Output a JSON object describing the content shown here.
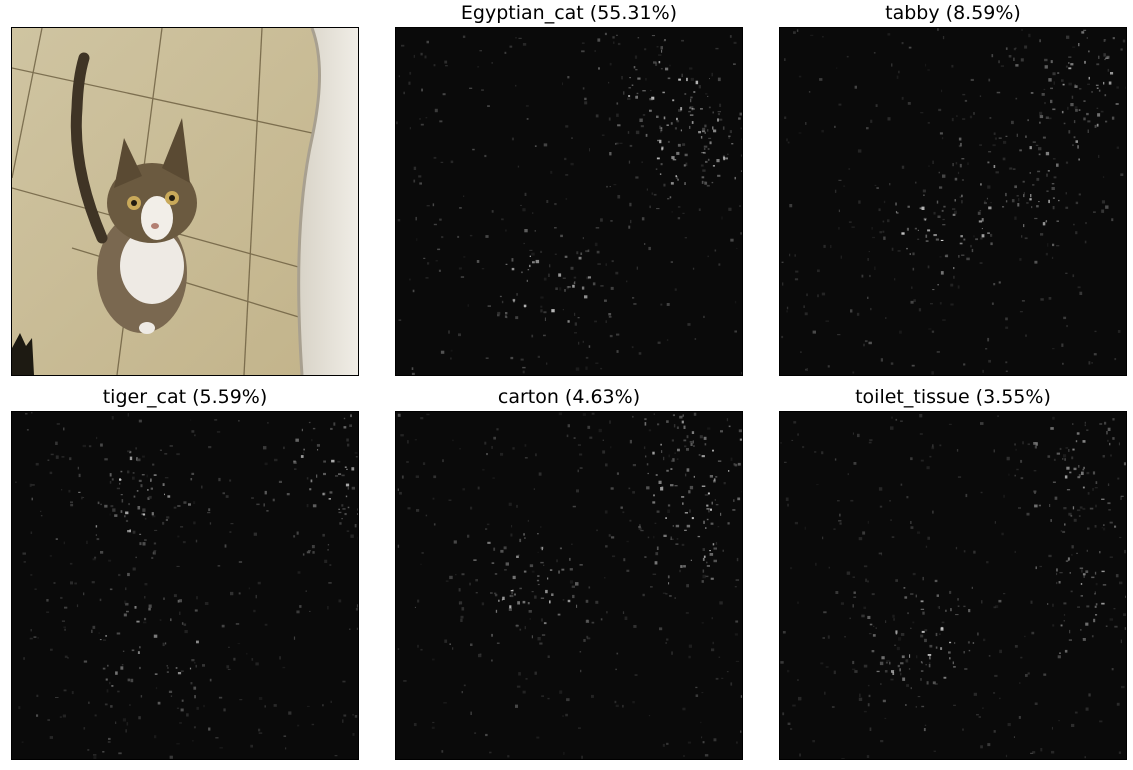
{
  "figure": {
    "panels": [
      {
        "title": "",
        "kind": "photo",
        "subject": "cat-photo"
      },
      {
        "title": "Egyptian_cat (55.31%)",
        "kind": "saliency",
        "subject": "saliency-map"
      },
      {
        "title": "tabby (8.59%)",
        "kind": "saliency",
        "subject": "saliency-map"
      },
      {
        "title": "tiger_cat (5.59%)",
        "kind": "saliency",
        "subject": "saliency-map"
      },
      {
        "title": "carton (4.63%)",
        "kind": "saliency",
        "subject": "saliency-map"
      },
      {
        "title": "toilet_tissue (3.55%)",
        "kind": "saliency",
        "subject": "saliency-map"
      }
    ]
  },
  "colors": {
    "background": "#ffffff",
    "frame": "#000000",
    "saliency_bg": "#0a0a0a",
    "tile": "#d9cfb0",
    "wall": "#e8e4dc",
    "cat_fur": "#6b5a40",
    "cat_white": "#eeeae4"
  }
}
